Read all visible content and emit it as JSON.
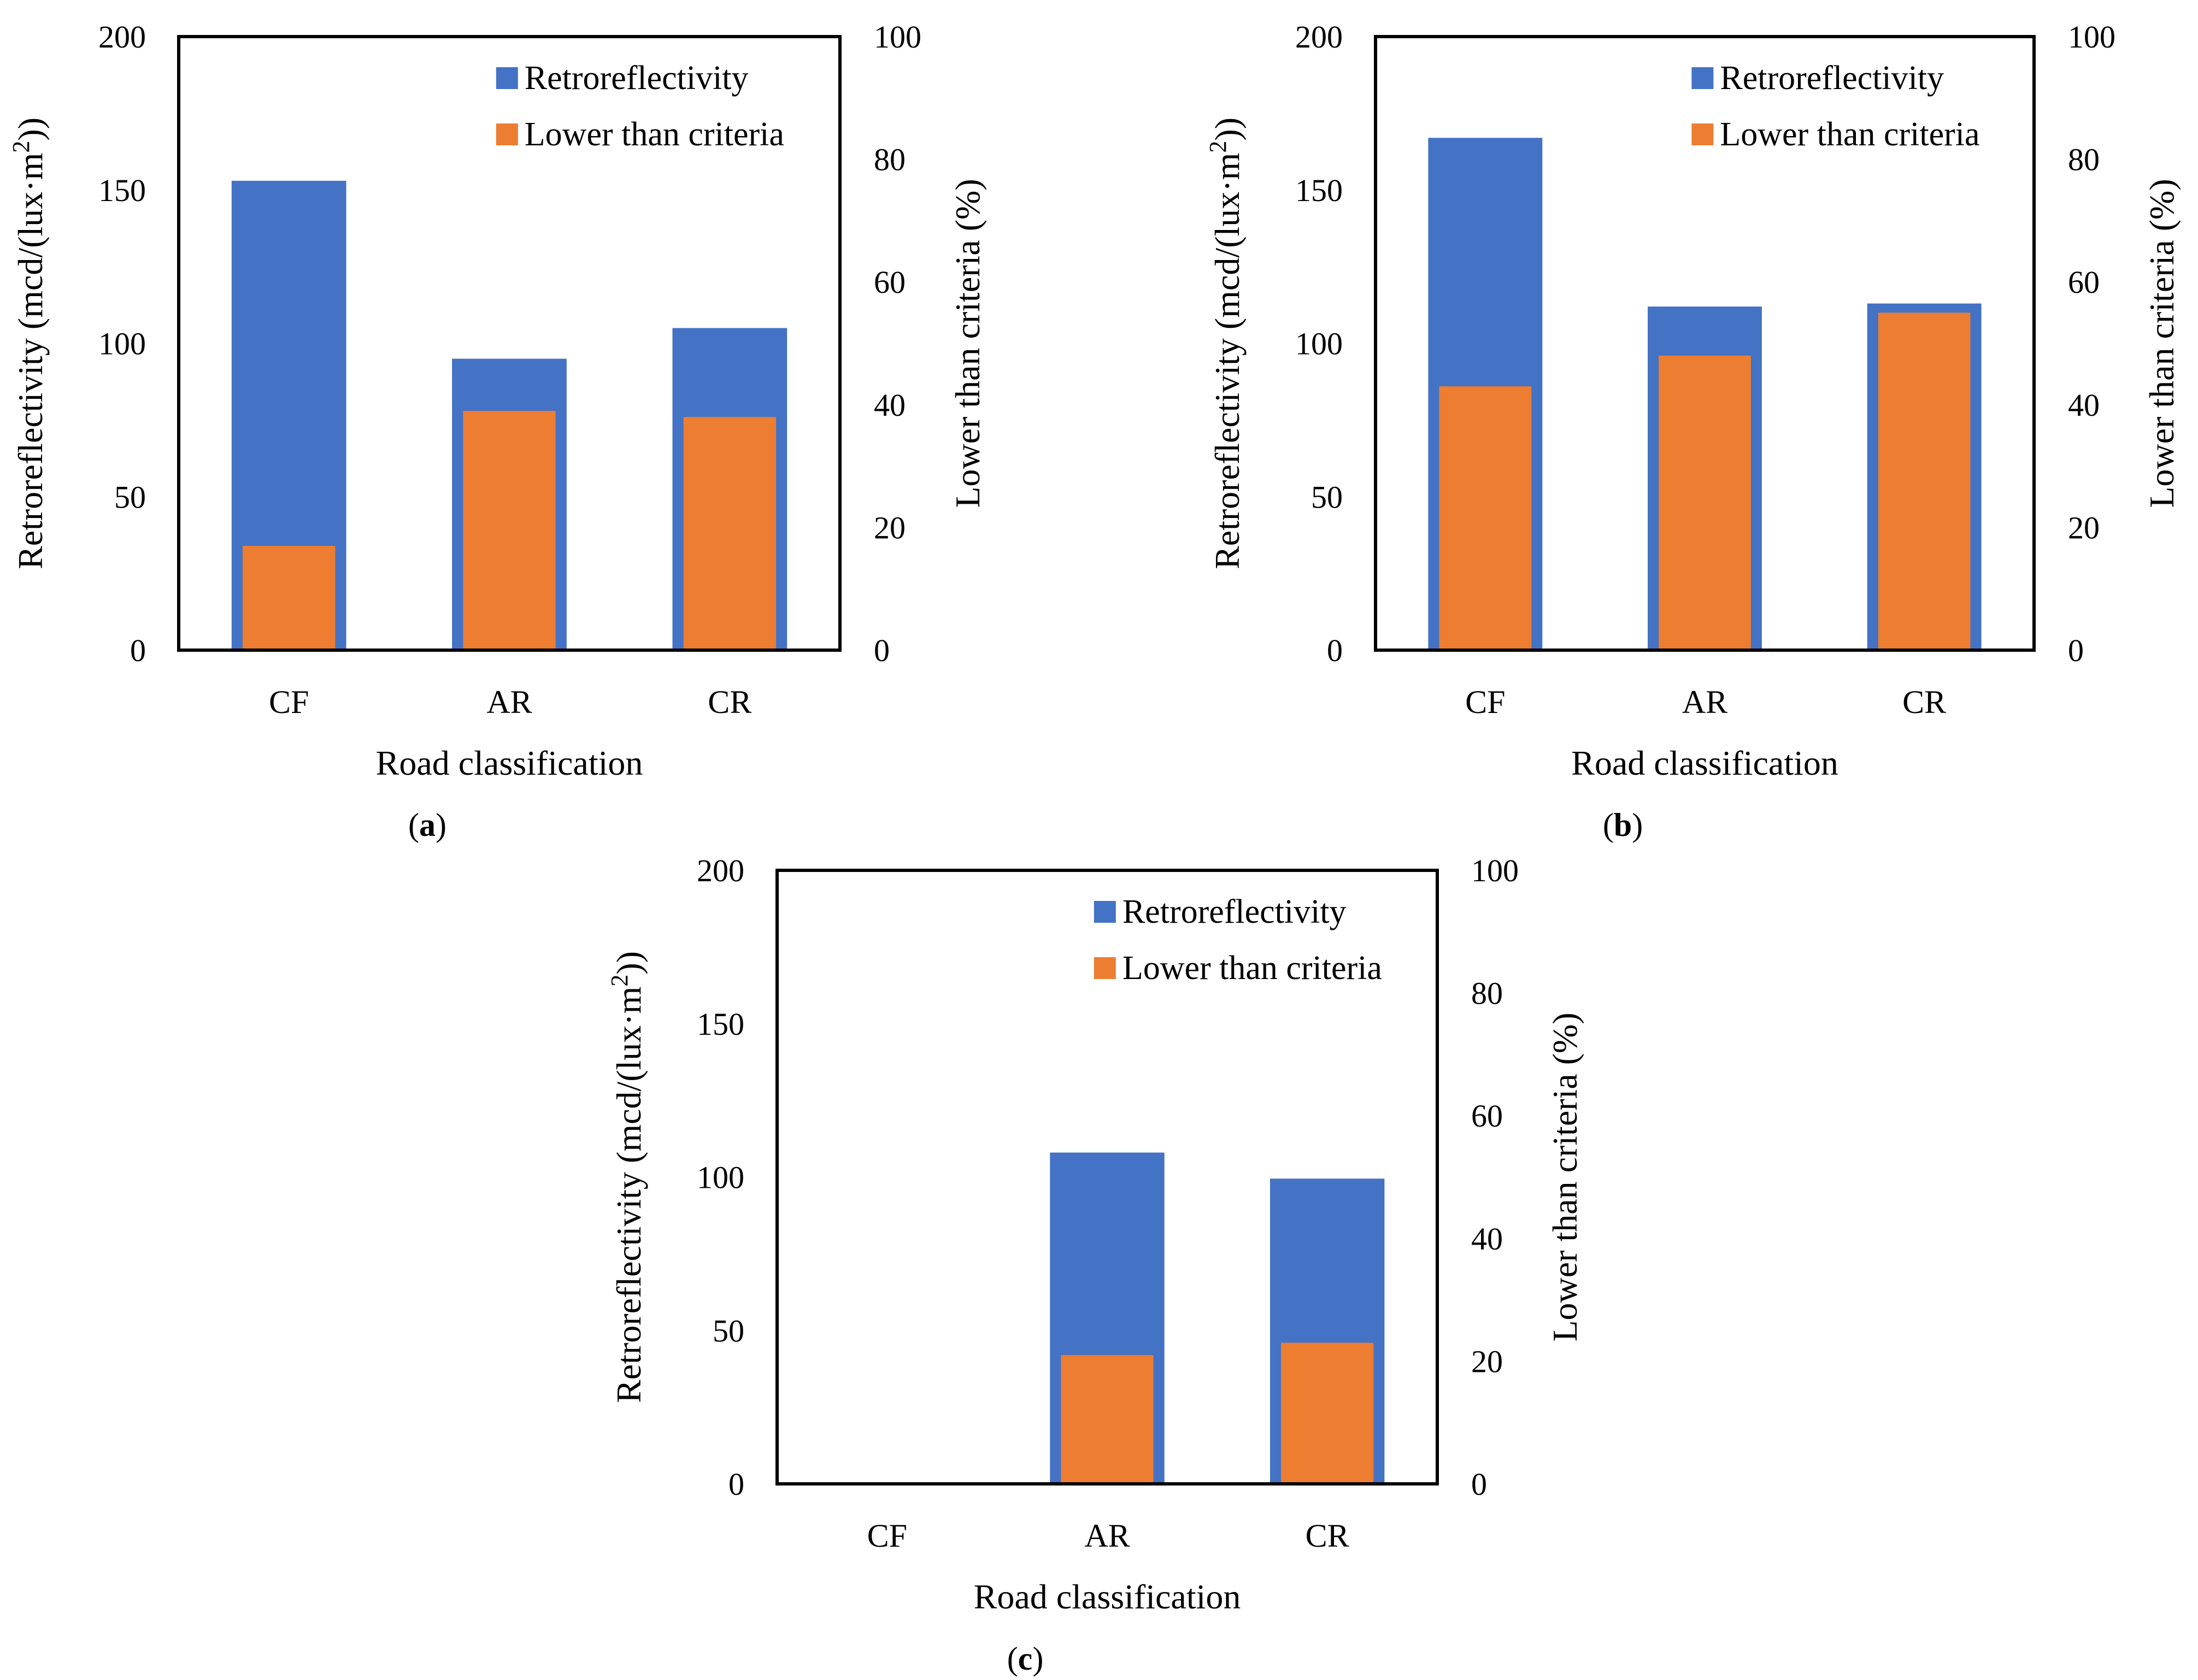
{
  "colors": {
    "retroreflectivity": "#4472C4",
    "lower_than_criteria": "#ED7D31",
    "axis": "#000000",
    "background": "#FFFFFF"
  },
  "chart_data": [
    {
      "type": "bar",
      "panel_label": "a",
      "categories": [
        "CF",
        "AR",
        "CR"
      ],
      "series": [
        {
          "name": "Retroreflectivity",
          "axis": "left",
          "values": [
            153,
            95,
            105
          ]
        },
        {
          "name": "Lower than criteria",
          "axis": "right",
          "values": [
            17,
            39,
            38
          ]
        }
      ],
      "xlabel": "Road classification",
      "ylabel_left": {
        "main": "Retroreflectivity (mcd/(lux·m",
        "sup": "2",
        "end": "))"
      },
      "ylabel_right": "Lower than criteria (%)",
      "ylim_left": [
        0,
        200
      ],
      "ylim_right": [
        0,
        100
      ],
      "yticks_left": [
        "0",
        "50",
        "100",
        "150",
        "200"
      ],
      "yticks_right": [
        "0",
        "20",
        "40",
        "60",
        "80",
        "100"
      ],
      "legend": [
        "Retroreflectivity",
        "Lower than criteria"
      ],
      "legend_position": "top-right",
      "grid": false
    },
    {
      "type": "bar",
      "panel_label": "b",
      "categories": [
        "CF",
        "AR",
        "CR"
      ],
      "series": [
        {
          "name": "Retroreflectivity",
          "axis": "left",
          "values": [
            167,
            112,
            113
          ]
        },
        {
          "name": "Lower than criteria",
          "axis": "right",
          "values": [
            43,
            48,
            55
          ]
        }
      ],
      "xlabel": "Road classification",
      "ylabel_left": {
        "main": "Retroreflectivity (mcd/(lux·m",
        "sup": "2",
        "end": "))"
      },
      "ylabel_right": "Lower than criteria (%)",
      "ylim_left": [
        0,
        200
      ],
      "ylim_right": [
        0,
        100
      ],
      "yticks_left": [
        "0",
        "50",
        "100",
        "150",
        "200"
      ],
      "yticks_right": [
        "0",
        "20",
        "40",
        "60",
        "80",
        "100"
      ],
      "legend": [
        "Retroreflectivity",
        "Lower than criteria"
      ],
      "legend_position": "top-right",
      "grid": false
    },
    {
      "type": "bar",
      "panel_label": "c",
      "categories": [
        "CF",
        "AR",
        "CR"
      ],
      "series": [
        {
          "name": "Retroreflectivity",
          "axis": "left",
          "values": [
            0,
            108,
            99.5
          ]
        },
        {
          "name": "Lower than criteria",
          "axis": "right",
          "values": [
            0,
            21,
            23
          ]
        }
      ],
      "xlabel": "Road classification",
      "ylabel_left": {
        "main": "Retroreflectivity (mcd/(lux·m",
        "sup": "2",
        "end": "))"
      },
      "ylabel_right": "Lower than criteria (%)",
      "ylim_left": [
        0,
        200
      ],
      "ylim_right": [
        0,
        100
      ],
      "yticks_left": [
        "0",
        "50",
        "100",
        "150",
        "200"
      ],
      "yticks_right": [
        "0",
        "20",
        "40",
        "60",
        "80",
        "100"
      ],
      "legend": [
        "Retroreflectivity",
        "Lower than criteria"
      ],
      "legend_position": "top-right",
      "grid": false
    }
  ]
}
